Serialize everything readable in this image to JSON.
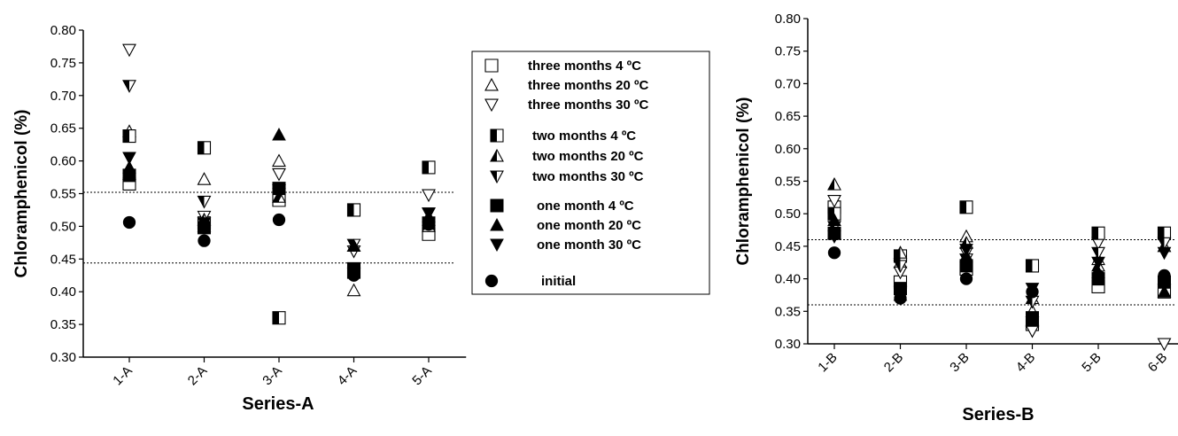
{
  "colors": {
    "ink": "#000000",
    "background": "#ffffff",
    "reference_line": "#000000"
  },
  "legend": {
    "placement": "center-between-charts",
    "entries": [
      {
        "label": "three months 4 ºC",
        "marker": "square-open"
      },
      {
        "label": "three months 20 ºC",
        "marker": "triangle-up-open"
      },
      {
        "label": "three months 30 ºC",
        "marker": "triangle-down-open"
      },
      {
        "label": "two months 4 ºC",
        "marker": "square-half"
      },
      {
        "label": "two months 20 ºC",
        "marker": "triangle-up-half"
      },
      {
        "label": "two months 30 ºC",
        "marker": "triangle-down-half"
      },
      {
        "label": "one month 4 ºC",
        "marker": "square-filled"
      },
      {
        "label": "one month 20 ºC",
        "marker": "triangle-up-filled"
      },
      {
        "label": "one month 30 ºC",
        "marker": "triangle-down-filled"
      },
      {
        "label": "initial",
        "marker": "circle-filled"
      }
    ]
  },
  "chart_data": [
    {
      "type": "scatter",
      "xlabel": "Series-A",
      "ylabel": "Chloramphenicol (%)",
      "ylim": [
        0.3,
        0.8
      ],
      "yticks": [
        "0.30",
        "0.35",
        "0.40",
        "0.45",
        "0.50",
        "0.55",
        "0.60",
        "0.65",
        "0.70",
        "0.75",
        "0.80"
      ],
      "categories": [
        "1-A",
        "2-A",
        "3-A",
        "4-A",
        "5-A"
      ],
      "reference_lines": [
        0.552,
        0.444
      ],
      "series": [
        {
          "name": "three months 4 ºC",
          "marker": "square-open",
          "values": [
            0.565,
            0.505,
            0.54,
            0.43,
            0.488
          ]
        },
        {
          "name": "three months 20 ºC",
          "marker": "triangle-up-open",
          "values": [
            0.645,
            0.572,
            0.6,
            0.402,
            0.5
          ]
        },
        {
          "name": "three months 30 ºC",
          "marker": "triangle-down-open",
          "values": [
            0.77,
            0.515,
            0.58,
            0.462,
            0.548
          ]
        },
        {
          "name": "two months 4 ºC",
          "marker": "square-half",
          "values": [
            0.638,
            0.62,
            0.36,
            0.525,
            0.59
          ]
        },
        {
          "name": "two months 20 ºC",
          "marker": "triangle-up-half",
          "values": [
            0.58,
            0.51,
            0.545,
            0.47,
            0.51
          ]
        },
        {
          "name": "two months 30 ºC",
          "marker": "triangle-down-half",
          "values": [
            0.715,
            0.538,
            0.555,
            0.472,
            0.52
          ]
        },
        {
          "name": "one month 4 ºC",
          "marker": "square-filled",
          "values": [
            0.578,
            0.498,
            0.558,
            0.435,
            0.505
          ]
        },
        {
          "name": "one month 20 ºC",
          "marker": "triangle-up-filled",
          "values": [
            0.59,
            0.5,
            0.64,
            0.47,
            0.515
          ]
        },
        {
          "name": "one month 30 ºC",
          "marker": "triangle-down-filled",
          "values": [
            0.605,
            0.505,
            0.55,
            0.428,
            0.52
          ]
        },
        {
          "name": "initial",
          "marker": "circle-filled",
          "values": [
            0.506,
            0.478,
            0.51,
            0.425,
            0.503
          ]
        }
      ]
    },
    {
      "type": "scatter",
      "xlabel": "Series-B",
      "ylabel": "Chloramphenicol (%)",
      "ylim": [
        0.3,
        0.8
      ],
      "yticks": [
        "0.30",
        "0.35",
        "0.40",
        "0.45",
        "0.50",
        "0.55",
        "0.60",
        "0.65",
        "0.70",
        "0.75",
        "0.80"
      ],
      "categories": [
        "1-B",
        "2-B",
        "3-B",
        "4-B",
        "5-B",
        "6-B"
      ],
      "reference_lines": [
        0.46,
        0.36
      ],
      "series": [
        {
          "name": "three months 4 ºC",
          "marker": "square-open",
          "values": [
            0.51,
            0.395,
            0.415,
            0.33,
            0.388,
            0.38
          ]
        },
        {
          "name": "three months 20 ºC",
          "marker": "triangle-up-open",
          "values": [
            0.47,
            0.425,
            0.465,
            0.35,
            0.43,
            0.4
          ]
        },
        {
          "name": "three months 30 ºC",
          "marker": "triangle-down-open",
          "values": [
            0.52,
            0.41,
            0.44,
            0.32,
            0.455,
            0.3
          ]
        },
        {
          "name": "two months 4 ºC",
          "marker": "square-half",
          "values": [
            0.5,
            0.435,
            0.51,
            0.42,
            0.47,
            0.47
          ]
        },
        {
          "name": "two months 20 ºC",
          "marker": "triangle-up-half",
          "values": [
            0.545,
            0.44,
            0.455,
            0.37,
            0.42,
            0.45
          ]
        },
        {
          "name": "two months 30 ºC",
          "marker": "triangle-down-half",
          "values": [
            0.48,
            0.42,
            0.43,
            0.365,
            0.44,
            0.455
          ]
        },
        {
          "name": "one month 4 ºC",
          "marker": "square-filled",
          "values": [
            0.47,
            0.385,
            0.42,
            0.34,
            0.4,
            0.395
          ]
        },
        {
          "name": "one month 20 ºC",
          "marker": "triangle-up-filled",
          "values": [
            0.49,
            0.375,
            0.435,
            0.335,
            0.41,
            0.38
          ]
        },
        {
          "name": "one month 30 ºC",
          "marker": "triangle-down-filled",
          "values": [
            0.465,
            0.38,
            0.445,
            0.385,
            0.425,
            0.44
          ]
        },
        {
          "name": "initial",
          "marker": "circle-filled",
          "values": [
            0.44,
            0.37,
            0.4,
            0.38,
            0.405,
            0.405
          ]
        }
      ]
    }
  ]
}
